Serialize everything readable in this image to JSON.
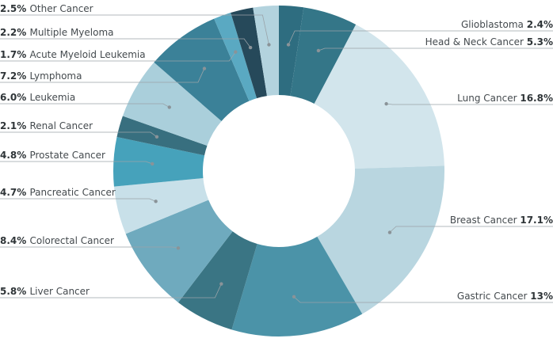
{
  "chart_data": {
    "type": "pie",
    "donut": true,
    "title": "",
    "slices": [
      {
        "label": "Glioblastoma",
        "value": 2.4,
        "pct_label": "2.4%",
        "color": "#2e6d80"
      },
      {
        "label": "Head & Neck Cancer",
        "value": 5.3,
        "pct_label": "5.3%",
        "color": "#347688"
      },
      {
        "label": "Lung Cancer",
        "value": 16.8,
        "pct_label": "16.8%",
        "color": "#d2e5ec"
      },
      {
        "label": "Breast Cancer",
        "value": 17.1,
        "pct_label": "17.1%",
        "color": "#b9d6e0"
      },
      {
        "label": "Gastric Cancer",
        "value": 13,
        "pct_label": "13%",
        "color": "#4b93a8"
      },
      {
        "label": "Liver Cancer",
        "value": 5.8,
        "pct_label": "5.8%",
        "color": "#3a7584"
      },
      {
        "label": "Colorectal Cancer",
        "value": 8.4,
        "pct_label": "8.4%",
        "color": "#6faabe"
      },
      {
        "label": "Pancreatic Cancer",
        "value": 4.7,
        "pct_label": "4.7%",
        "color": "#c8e0e9"
      },
      {
        "label": "Prostate Cancer",
        "value": 4.8,
        "pct_label": "4.8%",
        "color": "#46a2bb"
      },
      {
        "label": "Renal Cancer",
        "value": 2.1,
        "pct_label": "2.1%",
        "color": "#386f7f"
      },
      {
        "label": "Leukemia",
        "value": 6.0,
        "pct_label": "6.0%",
        "color": "#aacfdb"
      },
      {
        "label": "Lymphoma",
        "value": 7.2,
        "pct_label": "7.2%",
        "color": "#3b8198"
      },
      {
        "label": "Acute Myeloid Leukemia",
        "value": 1.7,
        "pct_label": "1.7%",
        "color": "#5aa9c2"
      },
      {
        "label": "Multiple Myeloma",
        "value": 2.2,
        "pct_label": "2.2%",
        "color": "#26495a"
      },
      {
        "label": "Other Cancer",
        "value": 2.5,
        "pct_label": "2.5%",
        "color": "#b3d3de"
      }
    ]
  }
}
